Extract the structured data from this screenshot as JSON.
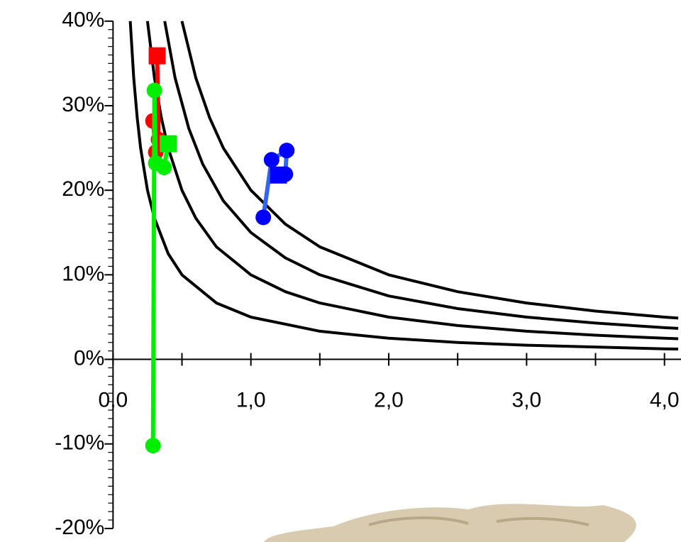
{
  "chart_data": {
    "type": "line",
    "xlim": [
      -0.82,
      4.12
    ],
    "ylim": [
      -21.6,
      42.5
    ],
    "xticks": [
      {
        "value": 0,
        "label": "0,0"
      },
      {
        "value": 1,
        "label": "1,0"
      },
      {
        "value": 2,
        "label": "2,0"
      },
      {
        "value": 3,
        "label": "3,0"
      },
      {
        "value": 4,
        "label": "4,0"
      }
    ],
    "xminorticks": [
      0.5,
      1.5,
      2.5,
      3.5
    ],
    "yticks": [
      {
        "value": -20,
        "label": "-20%"
      },
      {
        "value": -10,
        "label": "-10%"
      },
      {
        "value": 0,
        "label": "0%"
      },
      {
        "value": 10,
        "label": "10%"
      },
      {
        "value": 20,
        "label": "20%"
      },
      {
        "value": 30,
        "label": "30%"
      },
      {
        "value": 40,
        "label": "40%"
      }
    ],
    "yminorticks": [
      -19,
      -18,
      -17,
      -16,
      -15,
      -14,
      -13,
      -12,
      -11,
      -9,
      -8,
      -7,
      -6,
      -5,
      -4,
      -3,
      -2,
      -1,
      1,
      2,
      3,
      4,
      5,
      6,
      7,
      8,
      9,
      11,
      12,
      13,
      14,
      15,
      16,
      17,
      18,
      19,
      21,
      22,
      23,
      24,
      25,
      26,
      27,
      28,
      29,
      31,
      32,
      33,
      34,
      35,
      36,
      37,
      38,
      39
    ],
    "curves": [
      {
        "color": "#000000",
        "x": [
          0.5,
          0.6,
          0.7,
          0.8,
          1,
          1.25,
          1.5,
          2,
          2.5,
          3,
          3.5,
          4,
          4.1
        ],
        "values": [
          40,
          33.3,
          28.6,
          25,
          20,
          16,
          13.3,
          10,
          8,
          6.67,
          5.71,
          5,
          4.88
        ]
      },
      {
        "color": "#000000",
        "x": [
          0.375,
          0.45,
          0.55,
          0.65,
          0.8,
          1,
          1.25,
          1.5,
          2,
          2.5,
          3,
          3.5,
          4,
          4.1
        ],
        "values": [
          40,
          33.3,
          27.3,
          23.1,
          18.75,
          15,
          12,
          10,
          7.5,
          6,
          5,
          4.29,
          3.75,
          3.66
        ]
      },
      {
        "color": "#000000",
        "x": [
          0.25,
          0.3,
          0.35,
          0.4,
          0.5,
          0.6,
          0.75,
          1,
          1.25,
          1.5,
          2,
          2.5,
          3,
          3.5,
          4,
          4.1
        ],
        "values": [
          40,
          33.3,
          28.6,
          25,
          20,
          16.7,
          13.3,
          10,
          8,
          6.67,
          5,
          4,
          3.33,
          2.86,
          2.5,
          2.44
        ]
      },
      {
        "color": "#000000",
        "x": [
          0.125,
          0.15,
          0.175,
          0.2,
          0.25,
          0.3,
          0.4,
          0.5,
          0.75,
          1,
          1.5,
          2,
          2.5,
          3,
          4,
          4.1
        ],
        "values": [
          40,
          33.3,
          28.6,
          25,
          20,
          16.7,
          12.5,
          10,
          6.67,
          5,
          3.33,
          2.5,
          2,
          1.67,
          1.25,
          1.22
        ]
      }
    ],
    "series": [
      {
        "color": "#ff0000",
        "x": [
          0.29,
          0.31,
          0.33,
          0.32
        ],
        "values": [
          28.2,
          24.5,
          26.0,
          35.9
        ]
      },
      {
        "color": "#0000ff",
        "line_color": "#3366ee",
        "x": [
          1.09,
          1.15,
          1.26,
          1.25,
          1.2
        ],
        "values": [
          16.8,
          23.6,
          24.7,
          21.9,
          21.8
        ]
      },
      {
        "color": "#00ee00",
        "x": [
          0.29,
          0.3,
          0.31,
          0.37,
          0.4
        ],
        "values": [
          -10.2,
          31.8,
          23.2,
          22.7,
          25.5
        ]
      }
    ]
  }
}
